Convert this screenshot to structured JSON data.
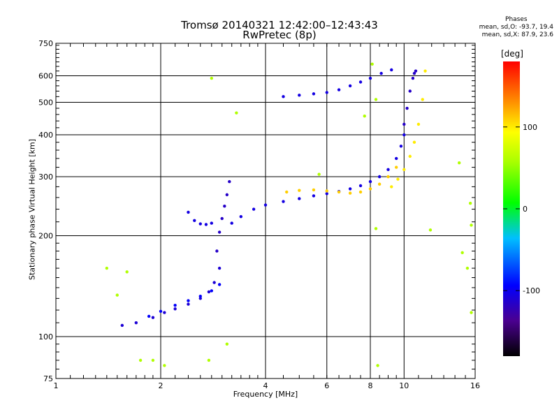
{
  "chart_data": {
    "type": "scatter",
    "title": "Tromsø 20140321 12:42:00–12:43:43",
    "subtitle": "RwPretec (8p)",
    "xlabel": "Frequency [MHz]",
    "ylabel": "Stationary phase Virtual Height [km]",
    "xscale": "log",
    "yscale": "log",
    "xlim": [
      1,
      16
    ],
    "ylim": [
      75,
      750
    ],
    "x_ticks": [
      1,
      2,
      4,
      6,
      8,
      10,
      16
    ],
    "x_tick_labels": [
      "1",
      "2",
      "4",
      "6",
      "8",
      "10",
      "16"
    ],
    "y_ticks": [
      75,
      100,
      200,
      300,
      400,
      500,
      600,
      750
    ],
    "y_tick_labels": [
      "75",
      "100",
      "200",
      "300",
      "400",
      "500",
      "600",
      "750"
    ],
    "grid": true,
    "stats": {
      "heading": "Phases",
      "line_o": "mean, sd,O: -93.7, 19.4",
      "line_x": "mean, sd,X:  87.9, 23.6"
    },
    "colorbar": {
      "unit": "[deg]",
      "range": [
        -180,
        180
      ],
      "ticks": [
        100,
        0,
        -100
      ],
      "tick_labels": [
        "100",
        "0",
        "-100"
      ]
    },
    "series": [
      {
        "x": [
          1.55,
          1.7,
          1.9,
          2.05,
          2.2,
          2.4,
          2.6,
          2.75,
          2.85,
          2.95
        ],
        "y": [
          108,
          110,
          114,
          118,
          121,
          125,
          130,
          136,
          145,
          160
        ],
        "phase": -110
      },
      {
        "x": [
          1.85,
          2.0,
          2.2,
          2.4,
          2.6,
          2.8,
          2.95
        ],
        "y": [
          115,
          119,
          124,
          128,
          132,
          137,
          143
        ],
        "phase": -95
      },
      {
        "x": [
          2.4,
          2.5,
          2.6,
          2.7,
          2.8
        ],
        "y": [
          235,
          222,
          217,
          216,
          218
        ],
        "phase": -105
      },
      {
        "x": [
          2.9,
          2.95,
          3.0,
          3.05,
          3.1,
          3.15
        ],
        "y": [
          180,
          205,
          225,
          245,
          265,
          290
        ],
        "phase": -115
      },
      {
        "x": [
          3.2,
          3.4,
          3.7,
          4.0,
          4.5,
          5.0,
          5.5,
          6.0,
          6.5,
          7.0,
          7.5,
          8.0,
          8.5,
          9.0,
          9.5,
          9.8,
          10.0
        ],
        "y": [
          218,
          228,
          240,
          247,
          253,
          258,
          263,
          267,
          271,
          276,
          282,
          290,
          300,
          315,
          340,
          370,
          400
        ],
        "phase": -105
      },
      {
        "x": [
          4.6,
          5.0,
          5.5,
          6.0,
          6.5,
          7.0,
          7.5,
          8.0,
          8.5,
          9.0,
          9.5
        ],
        "y": [
          270,
          273,
          274,
          272,
          270,
          268,
          270,
          276,
          285,
          300,
          320
        ],
        "phase": 110
      },
      {
        "x": [
          10.0,
          10.2,
          10.4,
          10.6,
          10.7,
          10.8
        ],
        "y": [
          430,
          480,
          540,
          590,
          610,
          620
        ],
        "phase": -115
      },
      {
        "x": [
          9.2,
          9.6,
          10.0,
          10.4,
          10.7,
          11.0,
          11.3,
          11.5
        ],
        "y": [
          280,
          295,
          315,
          345,
          380,
          430,
          510,
          620
        ],
        "phase": 100
      },
      {
        "x": [
          4.5,
          5.0,
          5.5,
          6.0,
          6.5,
          7.0,
          7.5,
          8.0,
          8.6,
          9.2
        ],
        "y": [
          520,
          525,
          530,
          535,
          545,
          560,
          575,
          590,
          610,
          625
        ],
        "phase": -105
      },
      {
        "x": [
          2.8,
          3.3,
          5.7,
          7.7,
          8.1,
          8.3,
          8.3,
          8.4,
          11.9,
          14.4,
          14.7,
          15.2,
          15.5,
          15.6,
          15.6,
          1.4,
          1.5,
          1.6,
          1.75,
          1.9,
          2.05,
          2.75,
          3.1
        ],
        "y": [
          590,
          465,
          305,
          455,
          650,
          510,
          210,
          82,
          208,
          330,
          178,
          160,
          250,
          215,
          118,
          160,
          133,
          156,
          85,
          85,
          82,
          85,
          95
        ],
        "phase": 60
      }
    ]
  }
}
